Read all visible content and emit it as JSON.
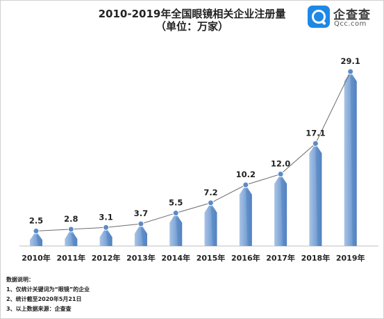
{
  "header": {
    "title": "2010-2019年全国眼镜相关企业注册量",
    "unit": "（单位：万家）"
  },
  "brand": {
    "name_cn": "企查查",
    "name_en": "Qcc.com",
    "logo_icon": "magnifier-logo-icon",
    "color": "#1e88e5"
  },
  "notes": {
    "heading": "数据说明：",
    "items": [
      "1、仅统计关键词为“眼镜”的企业",
      "2、统计截至2020年5月21日",
      "3、以上数据来源：企查查"
    ]
  },
  "chart_data": {
    "type": "bar",
    "title": "2010-2019年全国眼镜相关企业注册量",
    "subtitle": "（单位：万家）",
    "categories": [
      "2010年",
      "2011年",
      "2012年",
      "2013年",
      "2014年",
      "2015年",
      "2016年",
      "2017年",
      "2018年",
      "2019年"
    ],
    "values": [
      2.5,
      2.8,
      3.1,
      3.7,
      5.5,
      7.2,
      10.2,
      12.0,
      17.1,
      29.1
    ],
    "data_labels": [
      "2.5",
      "2.8",
      "3.1",
      "3.7",
      "5.5",
      "7.2",
      "10.2",
      "12.0",
      "17.1",
      "29.1"
    ],
    "overlay": "line connecting bar values with markers",
    "ylim": [
      0,
      29.1
    ],
    "grid": false,
    "legend": "none",
    "colors": {
      "bar_light": "#8fb2dc",
      "bar_dark": "#5b8bc6",
      "line": "#6b6b6b",
      "marker": "#5b8bc6"
    }
  }
}
